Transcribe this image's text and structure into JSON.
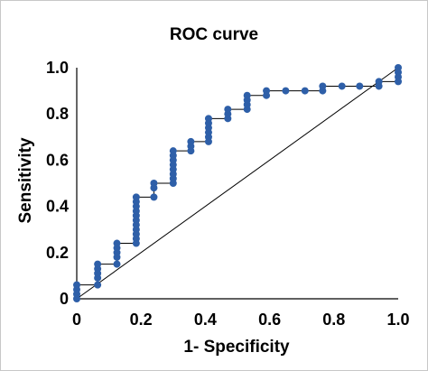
{
  "chart_data": {
    "type": "scatter",
    "title": "ROC curve",
    "xlabel": "1- Specificity",
    "ylabel": "Sensitivity",
    "xlim": [
      0,
      1
    ],
    "ylim": [
      0,
      1
    ],
    "x_ticks": [
      "0",
      "0.2",
      "0.4",
      "0.6",
      "0.8",
      "1.0"
    ],
    "y_ticks": [
      "0",
      "0.2",
      "0.4",
      "0.6",
      "0.8",
      "1.0"
    ],
    "grid": false,
    "legend": "none",
    "colors": {
      "points": "#2e5fa8",
      "lines": "#000000"
    },
    "series": [
      {
        "points": [
          [
            0.0,
            0.0
          ],
          [
            0.0,
            0.02
          ],
          [
            0.0,
            0.04
          ],
          [
            0.0,
            0.06
          ],
          [
            0.065,
            0.06
          ],
          [
            0.065,
            0.09
          ],
          [
            0.065,
            0.11
          ],
          [
            0.065,
            0.13
          ],
          [
            0.065,
            0.15
          ],
          [
            0.125,
            0.15
          ],
          [
            0.125,
            0.18
          ],
          [
            0.125,
            0.2
          ],
          [
            0.125,
            0.22
          ],
          [
            0.125,
            0.24
          ],
          [
            0.185,
            0.24
          ],
          [
            0.185,
            0.26
          ],
          [
            0.185,
            0.28
          ],
          [
            0.185,
            0.3
          ],
          [
            0.185,
            0.32
          ],
          [
            0.185,
            0.34
          ],
          [
            0.185,
            0.36
          ],
          [
            0.185,
            0.38
          ],
          [
            0.185,
            0.4
          ],
          [
            0.185,
            0.42
          ],
          [
            0.185,
            0.44
          ],
          [
            0.24,
            0.44
          ],
          [
            0.24,
            0.48
          ],
          [
            0.24,
            0.5
          ],
          [
            0.3,
            0.5
          ],
          [
            0.3,
            0.52
          ],
          [
            0.3,
            0.54
          ],
          [
            0.3,
            0.56
          ],
          [
            0.3,
            0.58
          ],
          [
            0.3,
            0.6
          ],
          [
            0.3,
            0.62
          ],
          [
            0.3,
            0.64
          ],
          [
            0.355,
            0.64
          ],
          [
            0.355,
            0.66
          ],
          [
            0.355,
            0.68
          ],
          [
            0.41,
            0.68
          ],
          [
            0.41,
            0.7
          ],
          [
            0.41,
            0.72
          ],
          [
            0.41,
            0.74
          ],
          [
            0.41,
            0.76
          ],
          [
            0.41,
            0.78
          ],
          [
            0.47,
            0.78
          ],
          [
            0.47,
            0.8
          ],
          [
            0.47,
            0.82
          ],
          [
            0.53,
            0.82
          ],
          [
            0.53,
            0.84
          ],
          [
            0.53,
            0.86
          ],
          [
            0.53,
            0.88
          ],
          [
            0.59,
            0.88
          ],
          [
            0.59,
            0.9
          ],
          [
            0.65,
            0.9
          ],
          [
            0.71,
            0.9
          ],
          [
            0.765,
            0.9
          ],
          [
            0.765,
            0.92
          ],
          [
            0.825,
            0.92
          ],
          [
            0.88,
            0.92
          ],
          [
            0.94,
            0.92
          ],
          [
            0.94,
            0.94
          ],
          [
            1.0,
            0.94
          ],
          [
            1.0,
            0.96
          ],
          [
            1.0,
            0.98
          ],
          [
            1.0,
            1.0
          ]
        ]
      }
    ],
    "reference_line": [
      [
        0,
        0
      ],
      [
        1,
        1
      ]
    ]
  }
}
